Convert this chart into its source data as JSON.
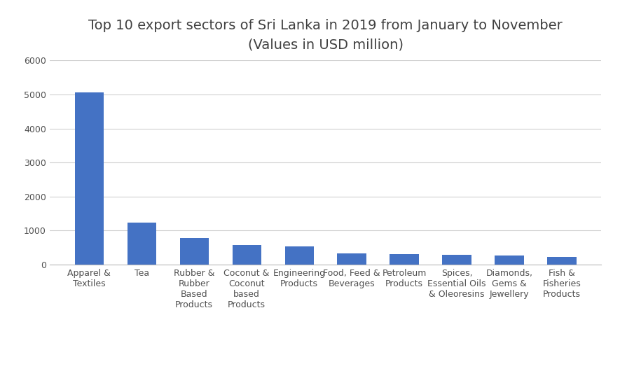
{
  "title": "Top 10 export sectors of Sri Lanka in 2019 from January to November\n(Values in USD million)",
  "categories": [
    "Apparel &\nTextiles",
    "Tea",
    "Rubber &\nRubber\nBased\nProducts",
    "Coconut &\nCoconut\nbased\nProducts",
    "Engineering\nProducts",
    "Food, Feed &\nBeverages",
    "Petroleum\nProducts",
    "Spices,\nEssential Oils\n& Oleoresins",
    "Diamonds,\nGems &\nJewellery",
    "Fish &\nFisheries\nProducts"
  ],
  "values": [
    5060,
    1230,
    790,
    570,
    540,
    330,
    305,
    295,
    260,
    235
  ],
  "bar_color": "#4472C4",
  "ylim": [
    0,
    6000
  ],
  "yticks": [
    0,
    1000,
    2000,
    3000,
    4000,
    5000,
    6000
  ],
  "title_fontsize": 14,
  "tick_fontsize": 9,
  "title_color": "#404040",
  "background_color": "#ffffff",
  "grid_color": "#d0d0d0"
}
